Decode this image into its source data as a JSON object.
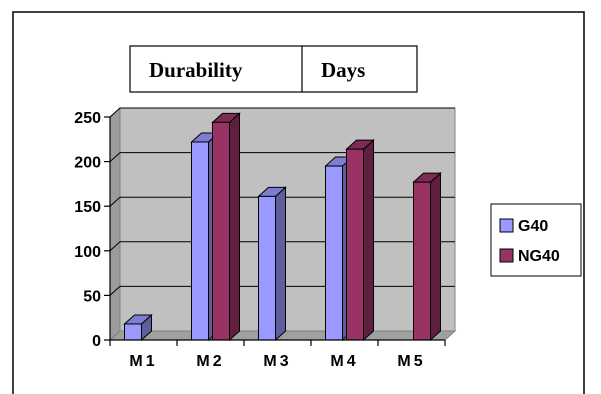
{
  "chart_data": {
    "type": "bar",
    "title_cells": [
      "Durability",
      "Days"
    ],
    "categories": [
      "M1",
      "M2",
      "M3",
      "M4",
      "M5"
    ],
    "series": [
      {
        "name": "G40",
        "color": "#9999ff",
        "values": [
          18,
          222,
          161,
          195,
          null
        ]
      },
      {
        "name": "NG40",
        "color": "#993366",
        "values": [
          null,
          244,
          null,
          214,
          177
        ]
      }
    ],
    "ylim": [
      0,
      250
    ],
    "yticks": [
      0,
      50,
      100,
      150,
      200,
      250
    ],
    "grid": true,
    "three_d": true,
    "legend_position": "right",
    "plot_wall_color": "#c0c0c0",
    "xlabel": "",
    "ylabel": ""
  }
}
